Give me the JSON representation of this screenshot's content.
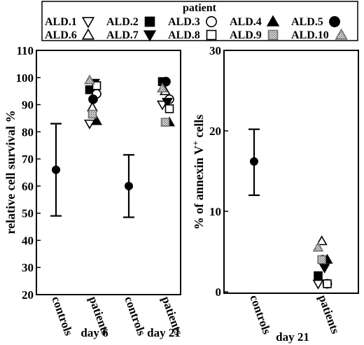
{
  "legend": {
    "title": "patient",
    "entries": [
      {
        "label": "ALD.1",
        "marker": "triangle-down-open"
      },
      {
        "label": "ALD.2",
        "marker": "square-filled"
      },
      {
        "label": "ALD.3",
        "marker": "circle-open"
      },
      {
        "label": "ALD.4",
        "marker": "triangle-up-filled"
      },
      {
        "label": "ALD.5",
        "marker": "circle-filled"
      },
      {
        "label": "ALD.6",
        "marker": "triangle-up-open"
      },
      {
        "label": "ALD.7",
        "marker": "triangle-down-filled"
      },
      {
        "label": "ALD.8",
        "marker": "square-open"
      },
      {
        "label": "ALD.9",
        "marker": "square-hatched"
      },
      {
        "label": "ALD.10",
        "marker": "triangle-up-hatched"
      }
    ]
  },
  "colors": {
    "ink": "#000000",
    "hatch": "#8c8c8c",
    "background": "#ffffff"
  },
  "chart_data": [
    {
      "type": "scatter",
      "ylabel": "relative cell survival %",
      "ylim": [
        20,
        110
      ],
      "yticks": [
        20,
        30,
        40,
        50,
        60,
        70,
        80,
        90,
        100,
        110
      ],
      "categories": [
        "controls",
        "patients",
        "controls",
        "patients"
      ],
      "groups": [
        {
          "label": "day 6",
          "categories": [
            0,
            1
          ]
        },
        {
          "label": "day 21",
          "categories": [
            2,
            3
          ]
        }
      ],
      "control_points": [
        {
          "category": 0,
          "mean": 66,
          "low": 49,
          "high": 83
        },
        {
          "category": 2,
          "mean": 60,
          "low": 48.5,
          "high": 71.5
        }
      ],
      "patient_points": [
        {
          "category": 1,
          "series": "ALD.1",
          "value": 83
        },
        {
          "category": 1,
          "series": "ALD.2",
          "value": 95.5
        },
        {
          "category": 1,
          "series": "ALD.3",
          "value": 94
        },
        {
          "category": 1,
          "series": "ALD.4",
          "value": 84
        },
        {
          "category": 1,
          "series": "ALD.5",
          "value": 92
        },
        {
          "category": 1,
          "series": "ALD.6",
          "value": 89
        },
        {
          "category": 1,
          "series": "ALD.7",
          "value": 98
        },
        {
          "category": 1,
          "series": "ALD.8",
          "value": 97
        },
        {
          "category": 1,
          "series": "ALD.9",
          "value": 86.5
        },
        {
          "category": 1,
          "series": "ALD.10",
          "value": 99
        },
        {
          "category": 3,
          "series": "ALD.1",
          "value": 90
        },
        {
          "category": 3,
          "series": "ALD.2",
          "value": 98.5
        },
        {
          "category": 3,
          "series": "ALD.3",
          "value": 92
        },
        {
          "category": 3,
          "series": "ALD.4",
          "value": 83.5
        },
        {
          "category": 3,
          "series": "ALD.5",
          "value": 98.5
        },
        {
          "category": 3,
          "series": "ALD.6",
          "value": 95
        },
        {
          "category": 3,
          "series": "ALD.7",
          "value": 91
        },
        {
          "category": 3,
          "series": "ALD.8",
          "value": 88.5
        },
        {
          "category": 3,
          "series": "ALD.9",
          "value": 83.5
        },
        {
          "category": 3,
          "series": "ALD.10",
          "value": 96
        }
      ]
    },
    {
      "type": "scatter",
      "ylabel": "% of annexin V+ cells",
      "ylim": [
        0,
        30
      ],
      "yticks": [
        0,
        10,
        20,
        30
      ],
      "categories": [
        "controls",
        "patients"
      ],
      "groups": [
        {
          "label": "day 21",
          "categories": [
            0,
            1
          ]
        }
      ],
      "control_points": [
        {
          "category": 0,
          "mean": 16.2,
          "low": 12,
          "high": 20.2
        }
      ],
      "patient_points": [
        {
          "category": 1,
          "series": "ALD.1",
          "value": 1
        },
        {
          "category": 1,
          "series": "ALD.2",
          "value": 2
        },
        {
          "category": 1,
          "series": "ALD.3",
          "value": 1
        },
        {
          "category": 1,
          "series": "ALD.4",
          "value": 4
        },
        {
          "category": 1,
          "series": "ALD.5",
          "value": 4
        },
        {
          "category": 1,
          "series": "ALD.6",
          "value": 6.3
        },
        {
          "category": 1,
          "series": "ALD.7",
          "value": 3
        },
        {
          "category": 1,
          "series": "ALD.8",
          "value": 1
        },
        {
          "category": 1,
          "series": "ALD.9",
          "value": 4
        },
        {
          "category": 1,
          "series": "ALD.10",
          "value": 5.5
        }
      ]
    }
  ]
}
